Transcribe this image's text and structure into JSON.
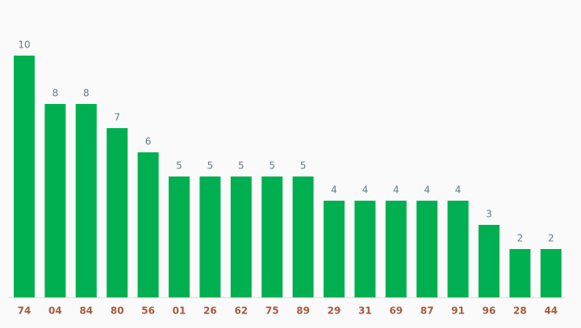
{
  "chart_data": {
    "type": "bar",
    "categories": [
      "74",
      "04",
      "84",
      "80",
      "56",
      "01",
      "26",
      "62",
      "75",
      "89",
      "29",
      "31",
      "69",
      "87",
      "91",
      "96",
      "28",
      "44"
    ],
    "values": [
      10,
      8,
      8,
      7,
      6,
      5,
      5,
      5,
      5,
      5,
      4,
      4,
      4,
      4,
      4,
      3,
      2,
      2
    ],
    "color": "#00b050"
  }
}
